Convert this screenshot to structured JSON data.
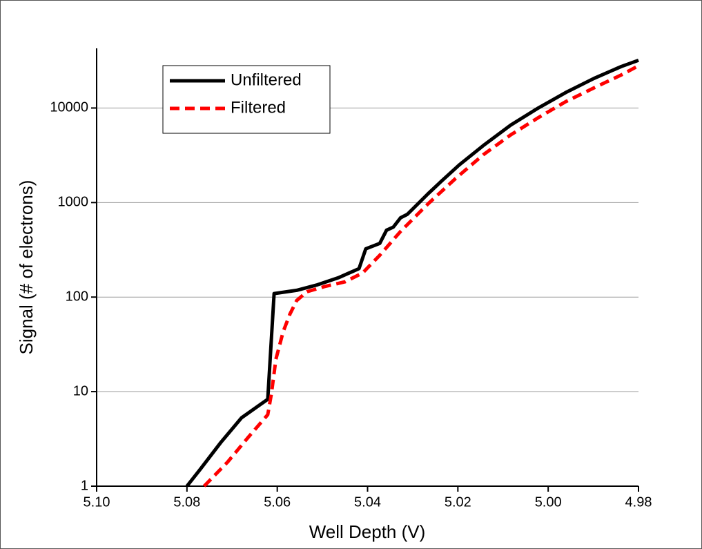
{
  "chart_data": {
    "type": "line",
    "xlabel": "Well Depth (V)",
    "ylabel": "Signal (# of electrons)",
    "xlim": [
      5.1,
      4.98
    ],
    "xticks": [
      {
        "value": 5.1,
        "label": "5.10"
      },
      5.08,
      5.06,
      5.04,
      5.02,
      {
        "value": 5.0,
        "label": "5.00"
      },
      4.98
    ],
    "ylim": [
      1,
      40000
    ],
    "yticks": [
      1,
      10,
      100,
      1000,
      10000
    ],
    "log_y": true,
    "grid": true,
    "legend": "upper left",
    "series": [
      {
        "name": "Unfiltered",
        "color": "#000000",
        "line_style": "solid",
        "x": [
          5.08,
          5.0771,
          5.0725,
          5.0679,
          5.0621,
          5.0607,
          5.0557,
          5.0511,
          5.0465,
          5.0419,
          5.0404,
          5.0373,
          5.0358,
          5.0343,
          5.0327,
          5.0312,
          5.0266,
          5.0236,
          5.0197,
          5.0144,
          5.0083,
          5.0022,
          4.9961,
          4.9899,
          4.9838,
          4.98
        ],
        "values": [
          1,
          1.5,
          2.9,
          5.3,
          8.3,
          109,
          118,
          135,
          160,
          200,
          324,
          370,
          510,
          550,
          690,
          750,
          1240,
          1690,
          2500,
          4000,
          6600,
          10000,
          14600,
          20500,
          27500,
          32000
        ]
      },
      {
        "name": "Filtered",
        "color": "#ff0000",
        "line_style": "dashed",
        "x": [
          5.0762,
          5.071,
          5.0664,
          5.0621,
          5.0613,
          5.0603,
          5.0587,
          5.0572,
          5.0557,
          5.0534,
          5.0496,
          5.045,
          5.0411,
          5.0373,
          5.0327,
          5.0266,
          5.0205,
          5.0144,
          5.0083,
          5.0022,
          4.9961,
          4.9899,
          4.9838,
          4.98
        ],
        "values": [
          1,
          1.8,
          3.3,
          5.7,
          9.5,
          22,
          43,
          66,
          92,
          114,
          129,
          145,
          180,
          277,
          495,
          970,
          1800,
          3200,
          5200,
          7900,
          11700,
          16300,
          22400,
          28000
        ]
      }
    ]
  }
}
